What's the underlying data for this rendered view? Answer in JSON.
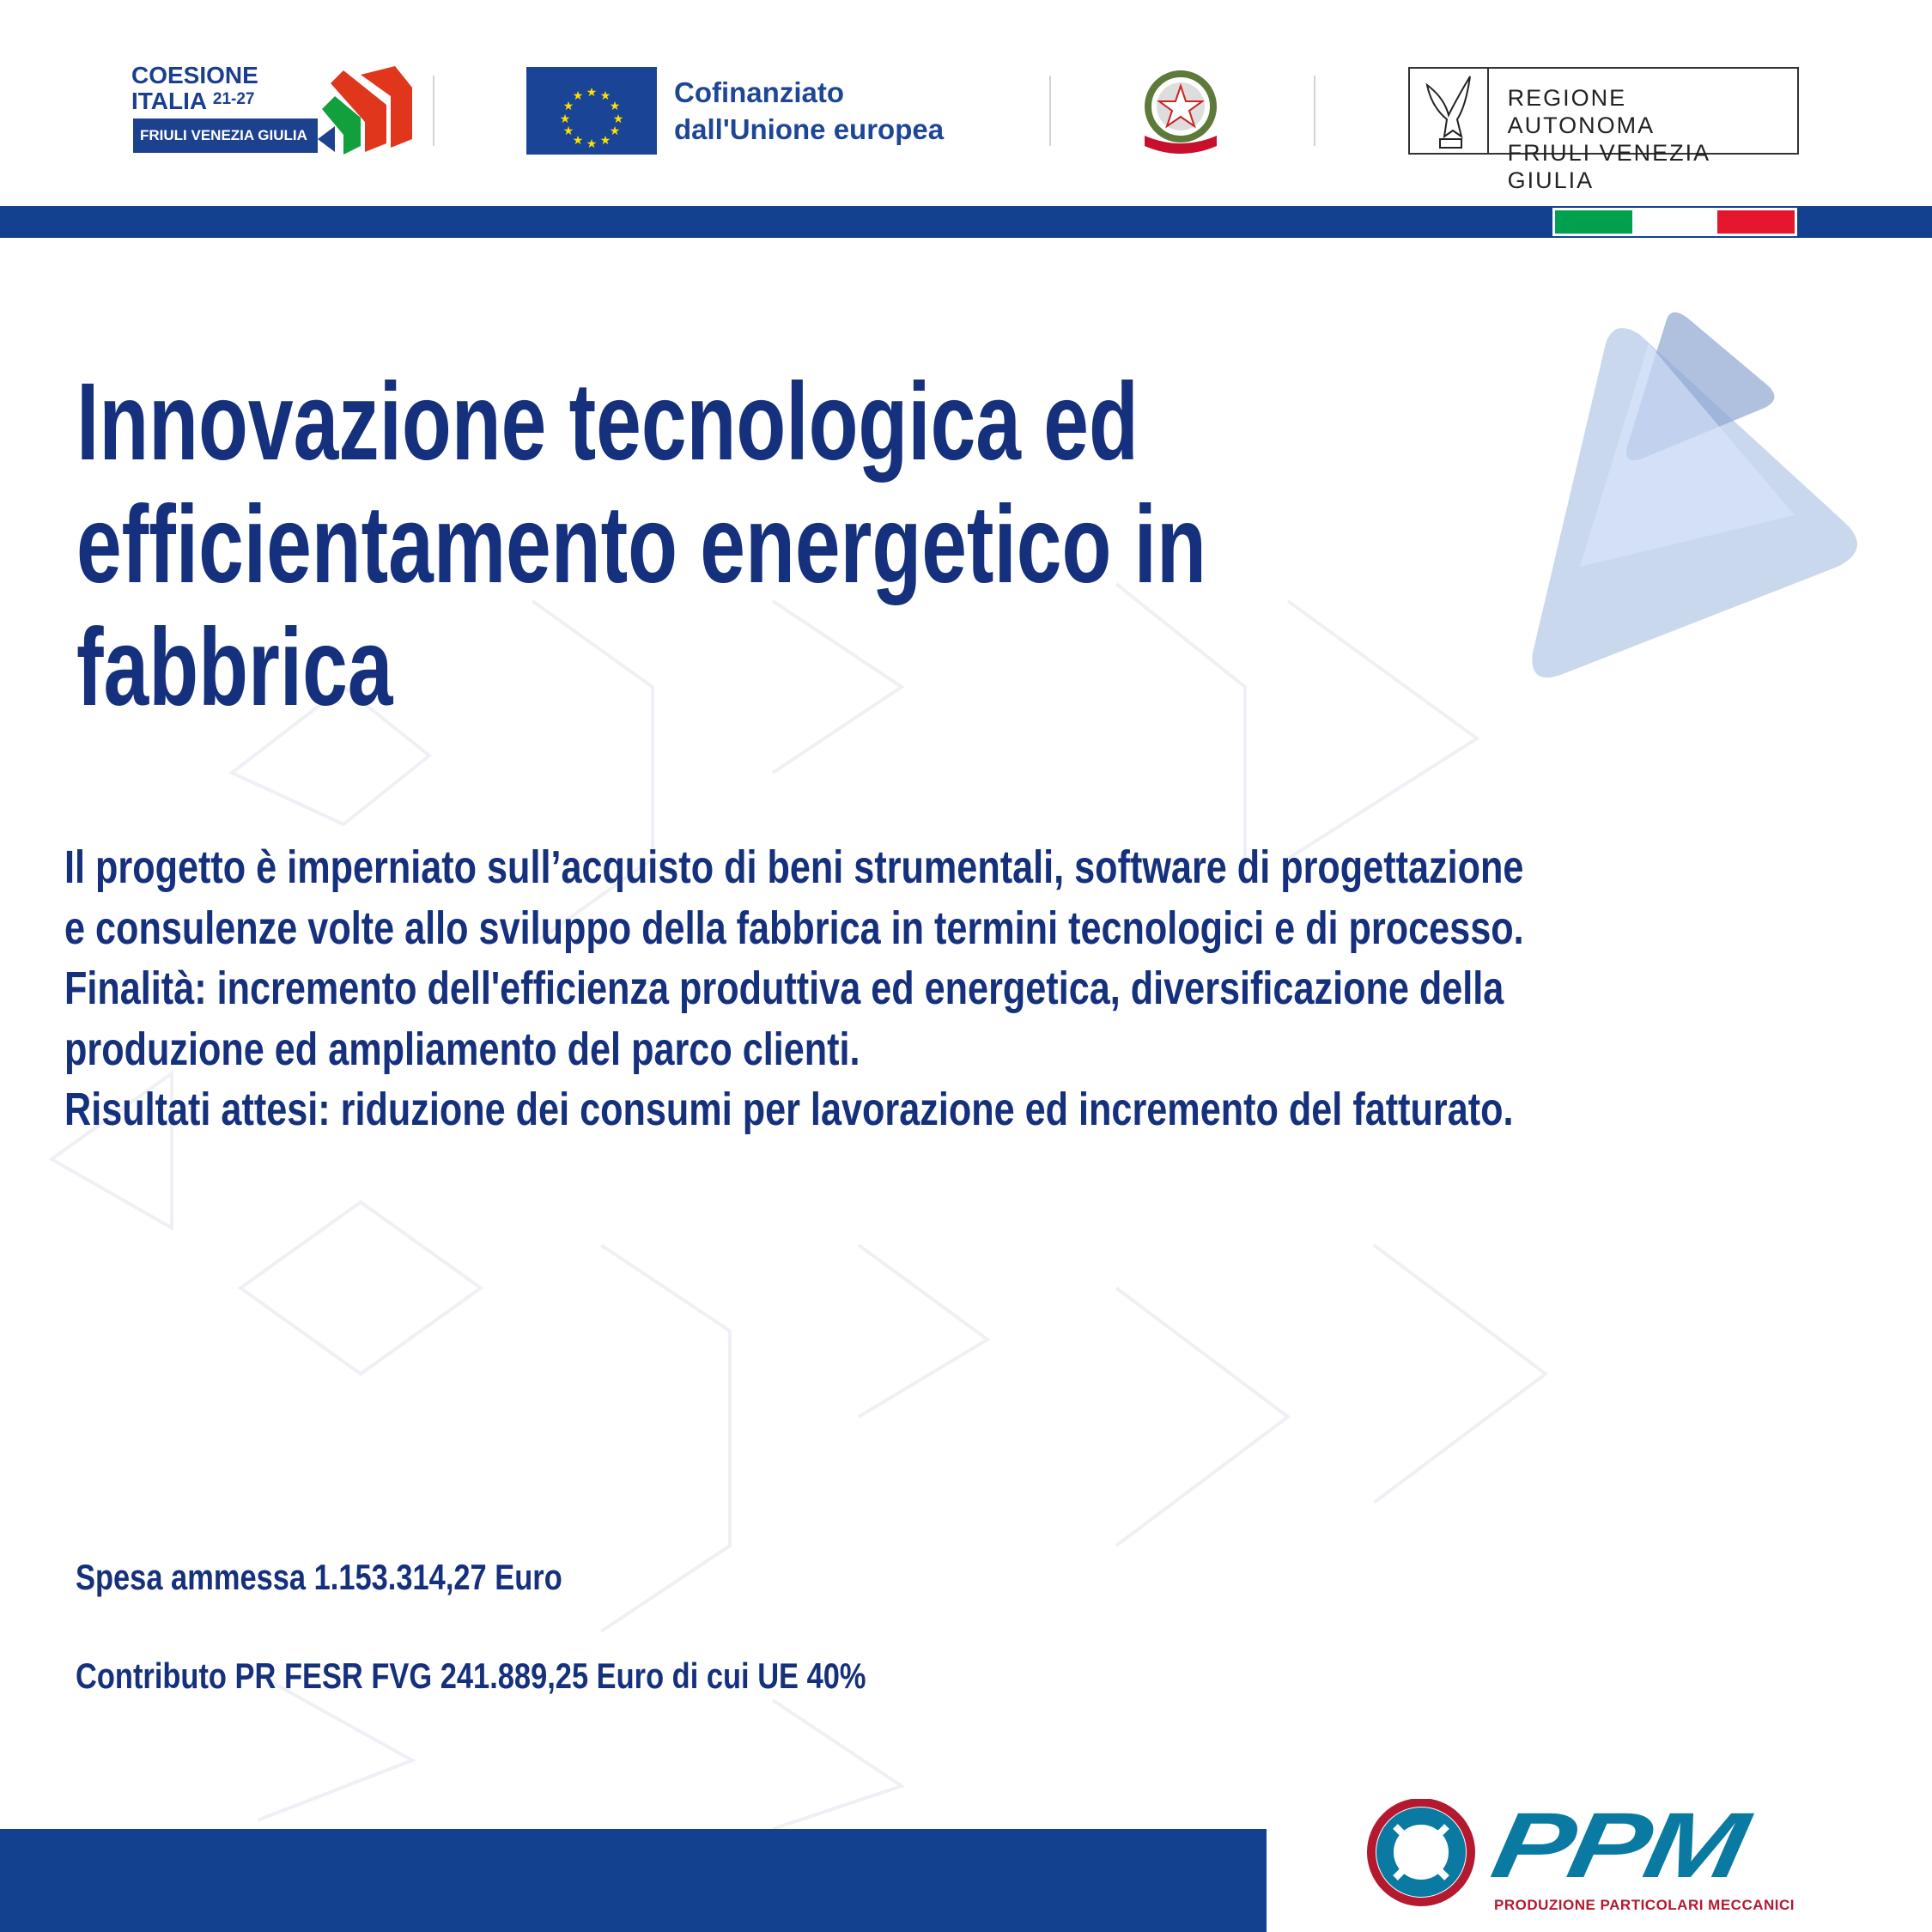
{
  "header": {
    "coesione_logo": {
      "line1": "COESIONE",
      "line2": "ITALIA",
      "years": "21-27",
      "region": "FRIULI VENEZIA GIULIA"
    },
    "eu_logo": {
      "line1": "Cofinanziato",
      "line2": "dall'Unione europea"
    },
    "emblem_logo": {
      "ribbon": "REPUBBLICA ITALIANA"
    },
    "region_logo": {
      "line1": "REGIONE AUTONOMA",
      "line2": "FRIULI VENEZIA GIULIA"
    }
  },
  "colors": {
    "brand_blue": "#14418f",
    "text_blue": "#15307c",
    "flag_green": "#00a04f",
    "flag_red": "#e4172e",
    "ppm_teal": "#0a7aa2",
    "ppm_red": "#b5192f"
  },
  "title": {
    "lines": [
      "Innovazione tecnologica ed",
      "efficientamento energetico in",
      "fabbrica"
    ]
  },
  "description": {
    "lines": [
      "Il progetto è imperniato sull’acquisto di beni strumentali, software di progettazione",
      "e consulenze volte allo sviluppo della fabbrica in termini tecnologici e di processo.",
      "Finalità: incremento dell'efficienza produttiva ed energetica, diversificazione della",
      "produzione ed ampliamento del parco clienti.",
      "Risultati attesi: riduzione dei consumi per lavorazione ed incremento del fatturato."
    ]
  },
  "funding": {
    "spesa": "Spesa ammessa 1.153.314,27 Euro",
    "contributo": "Contributo PR FESR FVG 241.889,25 Euro di cui UE 40%"
  },
  "company_logo": {
    "name": "PPM",
    "tagline": "PRODUZIONE PARTICOLARI MECCANICI"
  }
}
